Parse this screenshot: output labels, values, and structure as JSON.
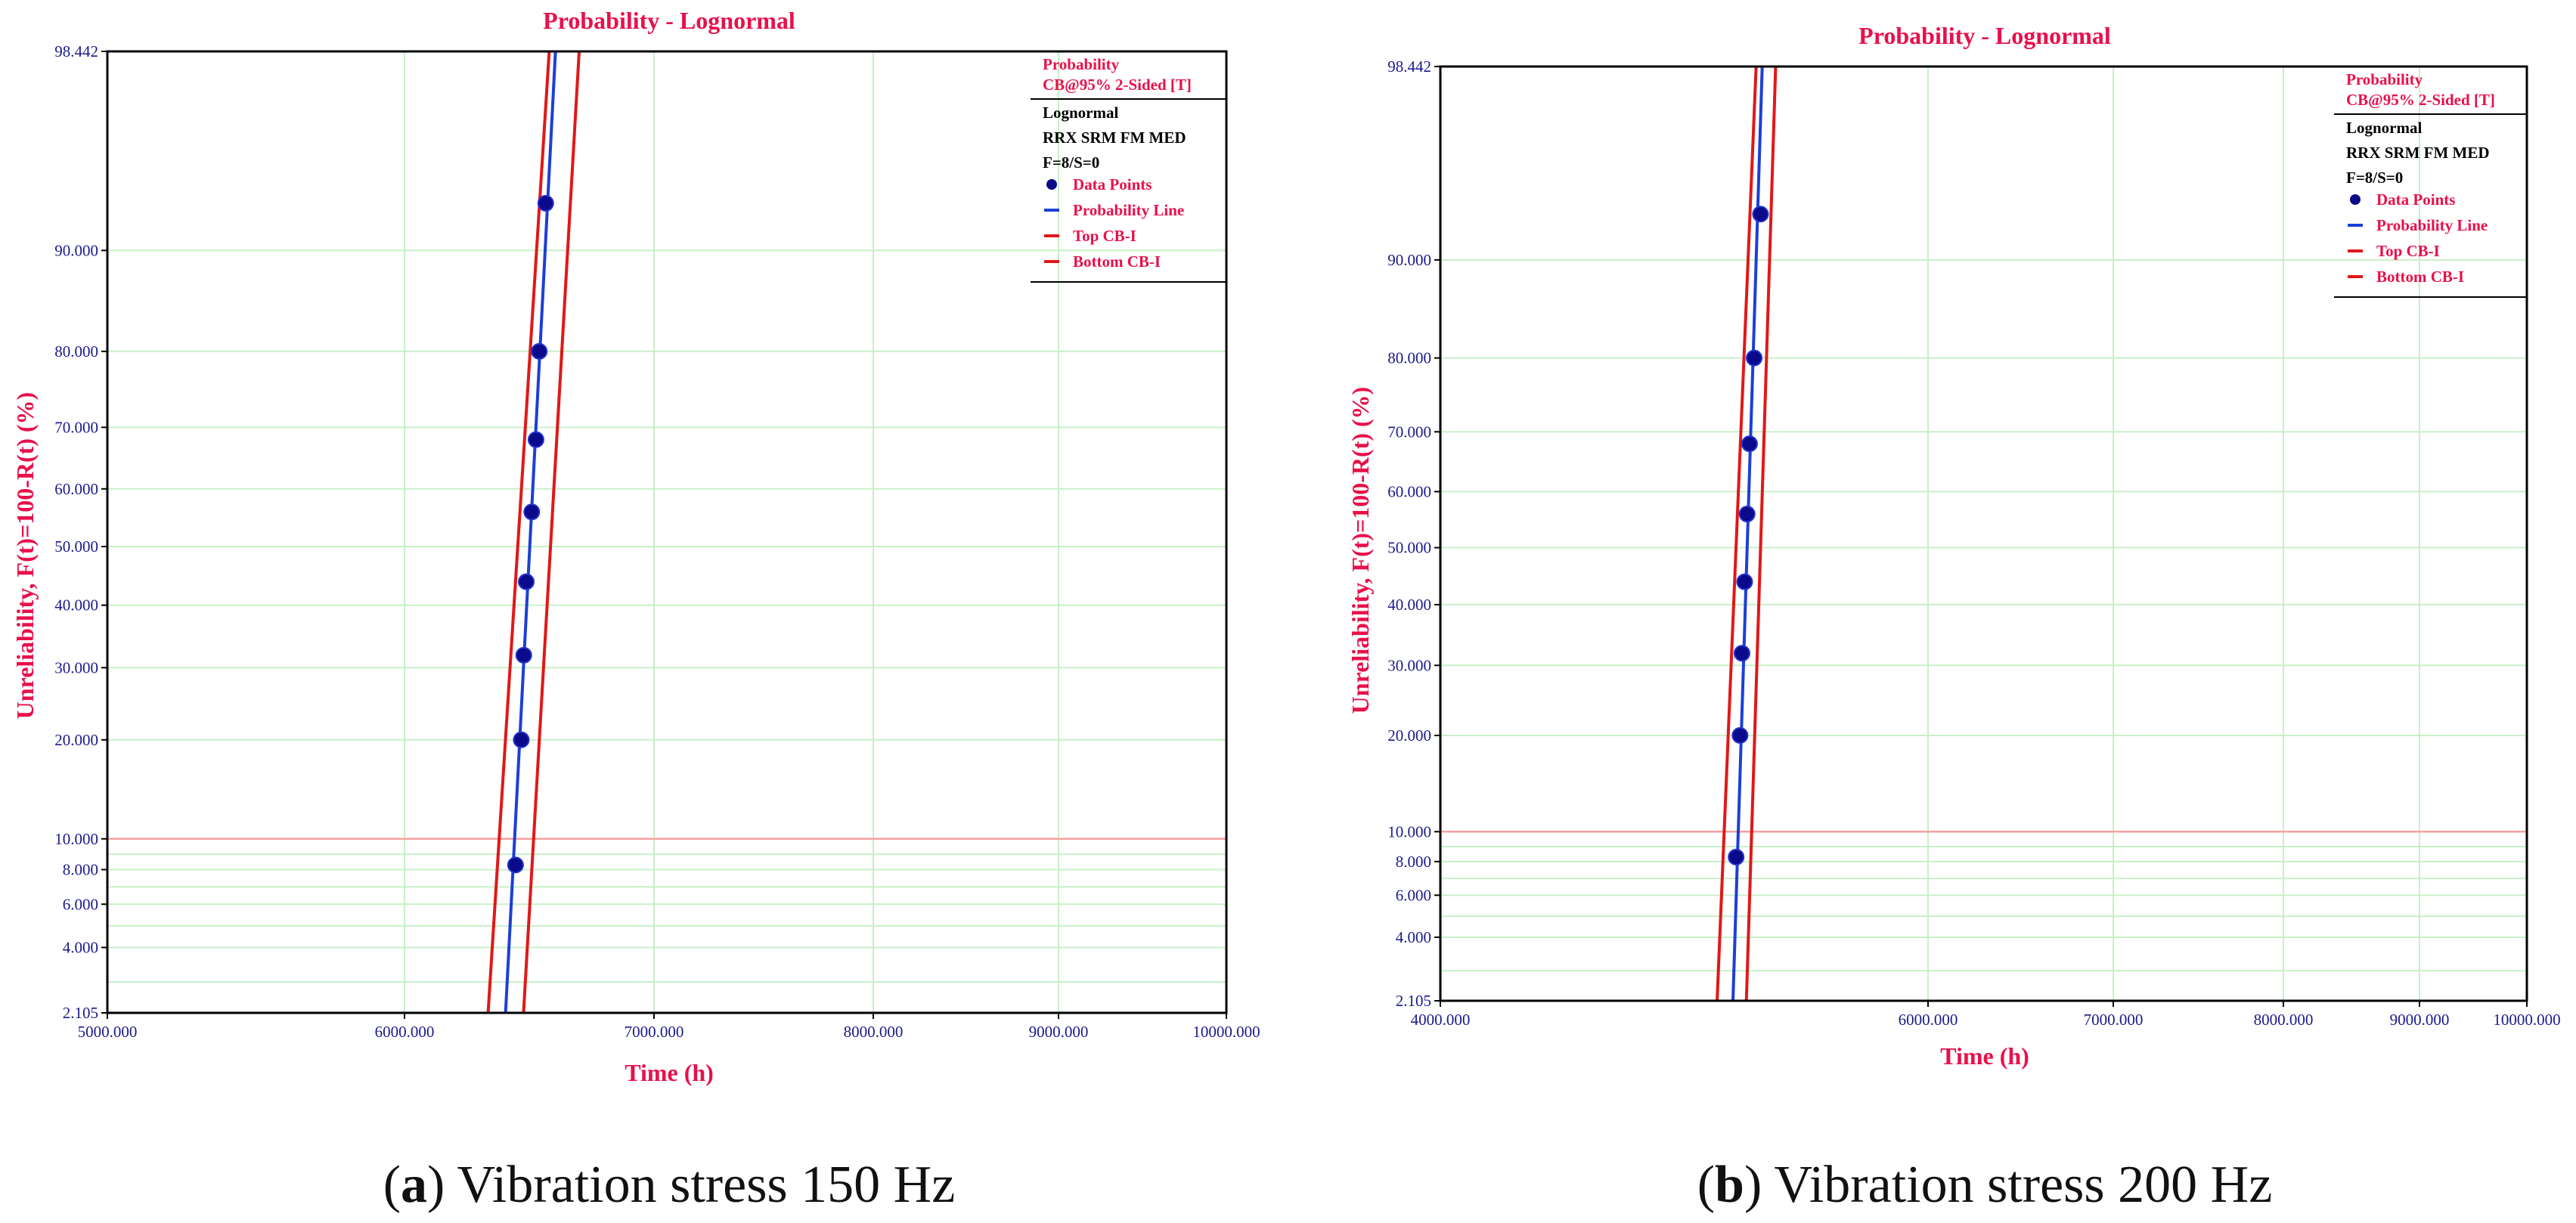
{
  "chart_data": [
    {
      "type": "line",
      "title": "Probability - Lognormal",
      "xlabel": "Time  (h)",
      "ylabel": "Unreliability, F(t)=100-R(t) (%)",
      "xlim": [
        5000,
        10000
      ],
      "ylim": [
        2.105,
        98.442
      ],
      "x_tick_labels": [
        "5000.000",
        "6000.000",
        "7000.000",
        "8000.000",
        "9000.000",
        "10000.000"
      ],
      "y_tick_labels": [
        "2.105",
        "4.000",
        "6.000",
        "8.000",
        "10.000",
        "20.000",
        "30.000",
        "40.000",
        "50.000",
        "60.000",
        "70.000",
        "80.000",
        "90.000",
        "98.442"
      ],
      "legend": {
        "header": [
          "Probability",
          "CB@95% 2-Sided [T]"
        ],
        "model": "Lognormal",
        "dataset": "RRX SRM FM MED",
        "counts": "F=8/S=0",
        "entries": [
          "Data Points",
          "Probability Line",
          "Top CB-I",
          "Bottom CB-I"
        ]
      },
      "series": [
        {
          "name": "Data Points",
          "x": [
            6445,
            6468,
            6478,
            6488,
            6510,
            6527,
            6540,
            6566
          ],
          "y": [
            8.3,
            20.0,
            32.0,
            44.0,
            56.0,
            68.0,
            80.0,
            92.0
          ]
        },
        {
          "name": "Probability Line",
          "x": [
            6405,
            6605
          ],
          "y": [
            2.105,
            98.442
          ]
        },
        {
          "name": "Top CB-I",
          "x": [
            6335,
            6580
          ],
          "y": [
            2.105,
            98.442
          ]
        },
        {
          "name": "Bottom CB-I",
          "x": [
            6477,
            6700
          ],
          "y": [
            2.105,
            98.442
          ]
        }
      ],
      "caption": {
        "letter": "a",
        "text": "Vibration stress 150 Hz"
      }
    },
    {
      "type": "line",
      "title": "Probability - Lognormal",
      "xlabel": "Time  (h)",
      "ylabel": "Unreliability, F(t)=100-R(t) (%)",
      "xlim": [
        4000,
        10000
      ],
      "ylim": [
        2.105,
        98.442
      ],
      "x_tick_labels": [
        "4000.000",
        "6000.000",
        "7000.000",
        "8000.000",
        "9000.000",
        "10000.000"
      ],
      "y_tick_labels": [
        "2.105",
        "4.000",
        "6.000",
        "8.000",
        "10.000",
        "20.000",
        "30.000",
        "40.000",
        "50.000",
        "60.000",
        "70.000",
        "80.000",
        "90.000",
        "98.442"
      ],
      "legend": {
        "header": [
          "Probability",
          "CB@95% 2-Sided [T]"
        ],
        "model": "Lognormal",
        "dataset": "RRX SRM FM MED",
        "counts": "F=8/S=0",
        "entries": [
          "Data Points",
          "Probability Line",
          "Top CB-I",
          "Bottom CB-I"
        ]
      },
      "series": [
        {
          "name": "Data Points",
          "x": [
            5213,
            5229,
            5237,
            5248,
            5258,
            5268,
            5287,
            5313
          ],
          "y": [
            8.3,
            20.0,
            32.0,
            44.0,
            56.0,
            68.0,
            80.0,
            92.0
          ]
        },
        {
          "name": "Probability Line",
          "x": [
            5200,
            5320
          ],
          "y": [
            2.105,
            98.442
          ]
        },
        {
          "name": "Top CB-I",
          "x": [
            5135,
            5295
          ],
          "y": [
            2.105,
            98.442
          ]
        },
        {
          "name": "Bottom CB-I",
          "x": [
            5255,
            5375
          ],
          "y": [
            2.105,
            98.442
          ]
        }
      ],
      "caption": {
        "letter": "b",
        "text": "Vibration stress 200 Hz"
      }
    }
  ],
  "colors": {
    "accent": "#e8104a",
    "tick": "#1a1a8c",
    "grid": "#c8f0c8",
    "ref_line": "#f5a0a0",
    "prob_line": "#1c3fd6",
    "cb_line": "#e01818",
    "point": "#0a0a8a"
  }
}
